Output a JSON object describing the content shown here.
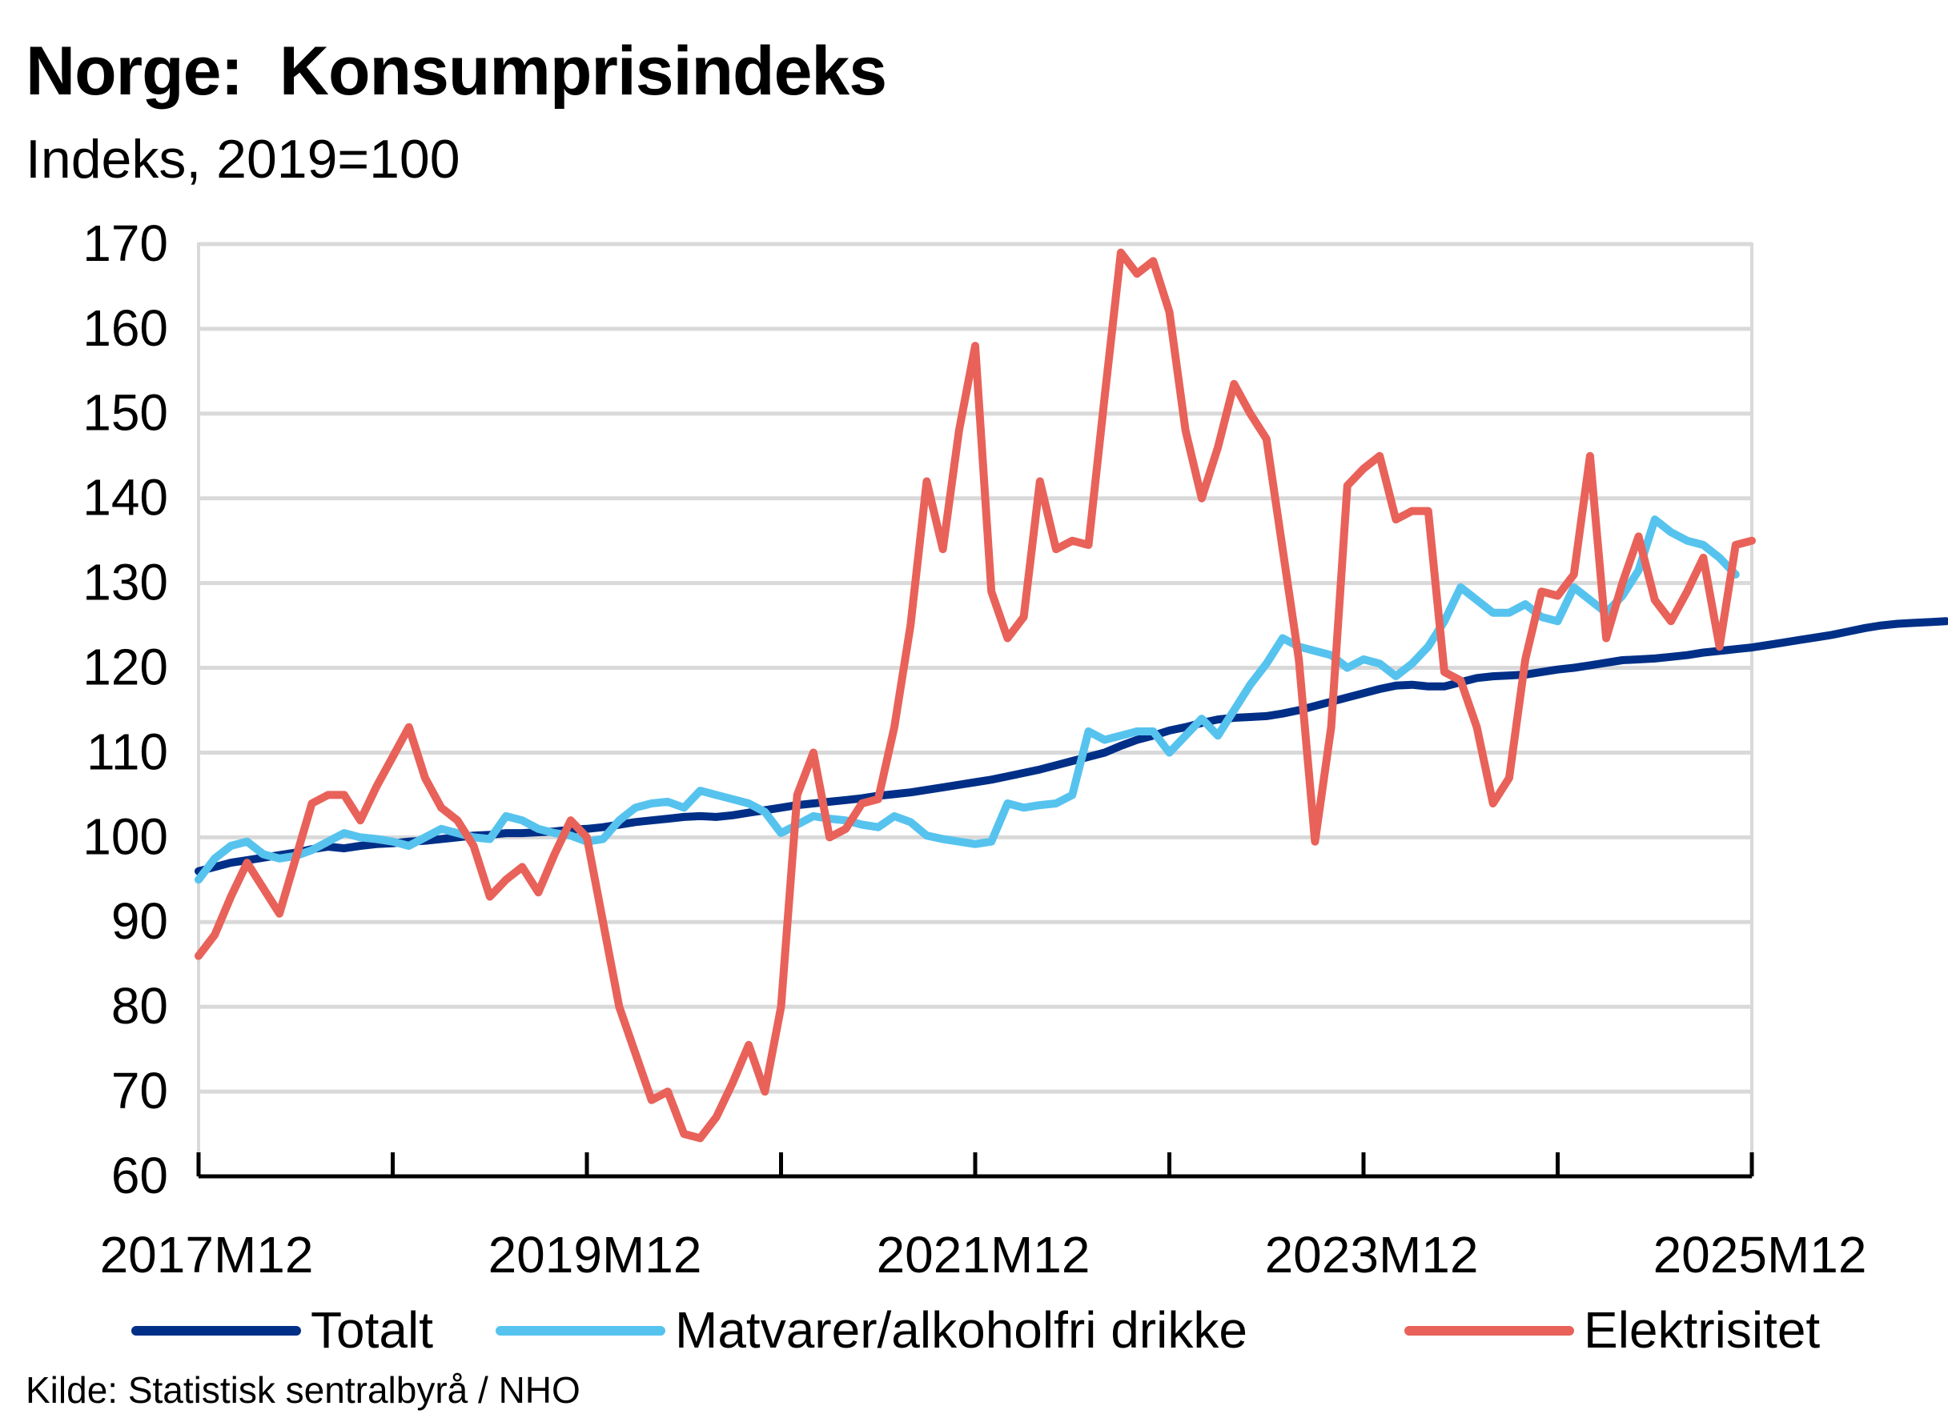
{
  "title": "Norge:  Konsumprisindeks",
  "subtitle": "Indeks, 2019=100",
  "source": "Kilde: Statistisk sentralbyrå / NHO",
  "chart_data": {
    "type": "line",
    "ylim": [
      60,
      170
    ],
    "yticks": [
      60,
      70,
      80,
      90,
      100,
      110,
      120,
      130,
      140,
      150,
      160,
      170
    ],
    "x_start": "2017M12",
    "x_end": "2025M12",
    "xtick_labels": [
      "2017M12",
      "2019M12",
      "2021M12",
      "2023M12",
      "2025M12"
    ],
    "grid": true,
    "legend_position": "bottom",
    "series": [
      {
        "name": "Totalt",
        "color": "#002F87",
        "values": [
          96.0,
          96.5,
          97.0,
          97.3,
          97.6,
          97.9,
          98.2,
          98.6,
          98.9,
          98.7,
          99.0,
          99.2,
          99.3,
          99.5,
          99.6,
          99.8,
          100.0,
          100.2,
          100.3,
          100.5,
          100.5,
          100.6,
          100.7,
          100.9,
          101.0,
          101.2,
          101.5,
          101.8,
          102.0,
          102.2,
          102.4,
          102.5,
          102.4,
          102.6,
          102.9,
          103.2,
          103.5,
          103.8,
          104.0,
          104.2,
          104.4,
          104.6,
          104.9,
          105.1,
          105.3,
          105.6,
          105.9,
          106.2,
          106.5,
          106.8,
          107.2,
          107.6,
          108.0,
          108.5,
          109.0,
          109.5,
          110.0,
          110.8,
          111.5,
          112.0,
          112.6,
          113.0,
          113.5,
          113.9,
          114.1,
          114.2,
          114.3,
          114.6,
          115.0,
          115.5,
          116.0,
          116.5,
          117.0,
          117.5,
          117.9,
          118.0,
          117.8,
          117.8,
          118.3,
          118.8,
          119.0,
          119.1,
          119.2,
          119.5,
          119.8,
          120.0,
          120.3,
          120.6,
          120.9,
          121.0,
          121.1,
          121.3,
          121.5,
          121.8,
          122.0,
          122.2,
          122.4,
          122.7,
          123.0,
          123.3,
          123.6,
          123.9,
          124.3,
          124.7,
          125.0,
          125.2,
          125.3,
          125.4,
          125.5
        ]
      },
      {
        "name": "Matvarer/alkoholfri drikke",
        "color": "#56C3EE",
        "values": [
          95.0,
          97.5,
          99.0,
          99.5,
          98.0,
          97.5,
          97.8,
          98.5,
          99.5,
          100.5,
          100.0,
          99.8,
          99.5,
          99.0,
          100.0,
          101.0,
          100.5,
          100.0,
          99.8,
          102.5,
          102.0,
          101.0,
          100.5,
          100.2,
          99.5,
          99.8,
          102.0,
          103.5,
          104.0,
          104.2,
          103.5,
          105.5,
          105.0,
          104.5,
          104.0,
          103.0,
          100.5,
          101.5,
          102.5,
          102.2,
          102.0,
          101.5,
          101.2,
          102.5,
          101.8,
          100.2,
          99.8,
          99.5,
          99.2,
          99.5,
          104.0,
          103.5,
          103.8,
          104.0,
          105.0,
          112.5,
          111.5,
          112.0,
          112.5,
          112.5,
          110.0,
          112.0,
          114.0,
          112.0,
          115.0,
          118.0,
          120.5,
          123.5,
          122.5,
          122.0,
          121.5,
          120.0,
          121.0,
          120.5,
          119.0,
          120.5,
          122.5,
          125.5,
          129.5,
          128.0,
          126.5,
          126.5,
          127.5,
          126.0,
          125.5,
          129.5,
          128.0,
          126.5,
          128.5,
          131.5,
          137.5,
          136.0,
          135.0,
          134.5,
          133.0,
          131.0
        ]
      },
      {
        "name": "Elektrisitet",
        "color": "#E8625A",
        "values": [
          86.0,
          88.5,
          93.0,
          97.0,
          94.0,
          91.0,
          97.5,
          104.0,
          105.0,
          105.0,
          102.0,
          106.0,
          109.5,
          113.0,
          107.0,
          103.5,
          102.0,
          99.0,
          93.0,
          95.0,
          96.5,
          93.5,
          98.0,
          102.0,
          100.0,
          90.0,
          80.0,
          74.5,
          69.0,
          70.0,
          65.0,
          64.5,
          67.0,
          71.0,
          75.5,
          70.0,
          80.0,
          105.0,
          110.0,
          100.0,
          101.0,
          104.0,
          104.5,
          113.0,
          125.0,
          142.0,
          134.0,
          148.0,
          158.0,
          129.0,
          123.5,
          126.0,
          142.0,
          134.0,
          135.0,
          134.5,
          152.0,
          169.0,
          166.5,
          168.0,
          162.0,
          148.0,
          140.0,
          146.0,
          153.5,
          150.0,
          147.0,
          134.0,
          121.0,
          99.5,
          113.0,
          141.5,
          143.5,
          145.0,
          137.5,
          138.5,
          138.5,
          119.5,
          118.5,
          113.0,
          104.0,
          107.0,
          121.0,
          129.0,
          128.5,
          131.0,
          145.0,
          123.5,
          130.0,
          135.5,
          128.0,
          125.5,
          129.0,
          133.0,
          122.5,
          134.5,
          135.0
        ]
      }
    ]
  }
}
